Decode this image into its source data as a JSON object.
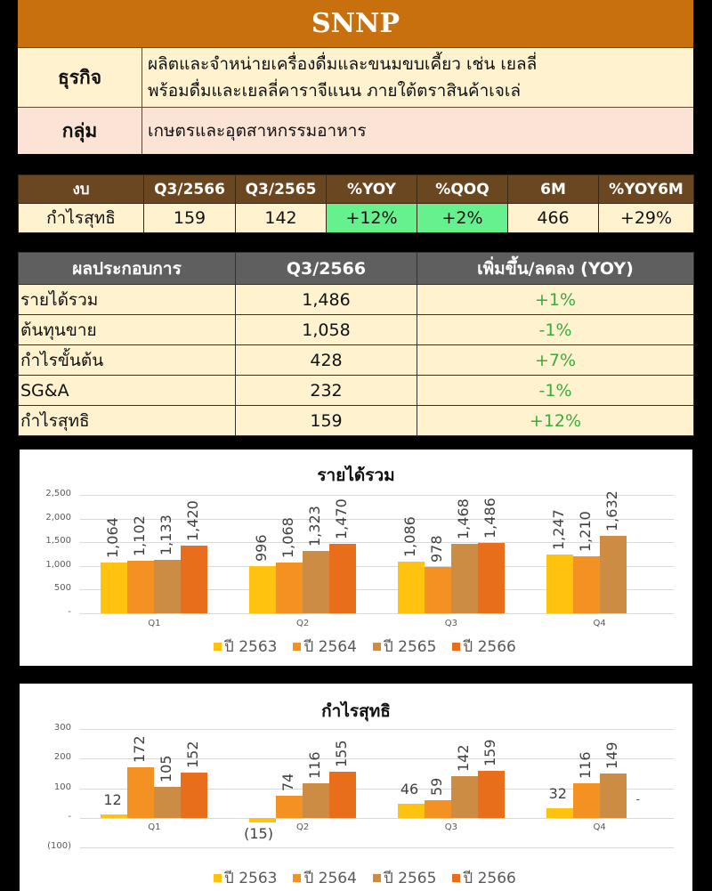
{
  "header": {
    "ticker": "SNNP",
    "business_label": "ธุรกิจ",
    "business_lines": [
      "ผลิตและจำหน่ายเครื่องดื่มและขนมขบเคี้ยว เช่น เยลลี่",
      "พร้อมดื่มและเยลลี่คาราจีแนน ภายใต้ตราสินค้าเจเล่"
    ],
    "group_label": "กลุ่ม",
    "group_value": "เกษตรและอุตสาหกรรมอาหาร"
  },
  "summary_table": {
    "headers": [
      "งบ",
      "Q3/2566",
      "Q3/2565",
      "%YOY",
      "%QOQ",
      "6M",
      "%YOY6M"
    ],
    "row": [
      "กำไรสุทธิ",
      "159",
      "142",
      "+12%",
      "+2%",
      "466",
      "+29%"
    ]
  },
  "operating_table": {
    "headers": [
      "ผลประกอบการ",
      "Q3/2566",
      "เพิ่มขึ้น/ลดลง (YOY)"
    ],
    "rows": [
      [
        "รายได้รวม",
        "1,486",
        "+1%"
      ],
      [
        "ต้นทุนขาย",
        "1,058",
        "-1%"
      ],
      [
        "กำไรขั้นต้น",
        "428",
        "+7%"
      ],
      [
        "SG&A",
        "232",
        "-1%"
      ],
      [
        "กำไรสุทธิ",
        "159",
        "+12%"
      ]
    ]
  },
  "colors": {
    "header_orange": "#C8700E",
    "summary_header_brown": "#6A4720",
    "operating_header_gray": "#5F5F5F",
    "positive_green_fill": "#66F08E",
    "change_text_green": "#3DAA3D",
    "series": [
      "#FFC20E",
      "#F39222",
      "#CC8C44",
      "#E86E1C"
    ]
  },
  "chart_data": [
    {
      "type": "bar",
      "title": "รายได้รวม",
      "categories": [
        "Q1",
        "Q2",
        "Q3",
        "Q4"
      ],
      "series": [
        {
          "name": "ปี 2563",
          "values": [
            1064,
            996,
            1086,
            1247
          ],
          "labels": [
            "1,064",
            "996",
            "1,086",
            "1,247"
          ]
        },
        {
          "name": "ปี 2564",
          "values": [
            1102,
            1068,
            978,
            1210
          ],
          "labels": [
            "1,102",
            "1,068",
            "978",
            "1,210"
          ]
        },
        {
          "name": "ปี 2565",
          "values": [
            1133,
            1323,
            1468,
            1632
          ],
          "labels": [
            "1,133",
            "1,323",
            "1,468",
            "1,632"
          ]
        },
        {
          "name": "ปี 2566",
          "values": [
            1420,
            1470,
            1486,
            null
          ],
          "labels": [
            "1,420",
            "1,470",
            "1,486",
            ""
          ]
        }
      ],
      "yticks": [
        "2,500",
        "2,000",
        "1,500",
        "1,000",
        "500",
        "-"
      ],
      "ylim": [
        0,
        2500
      ],
      "xlabel": "",
      "ylabel": "",
      "grid": true,
      "legend_position": "bottom"
    },
    {
      "type": "bar",
      "title": "กำไรสุทธิ",
      "categories": [
        "Q1",
        "Q2",
        "Q3",
        "Q4"
      ],
      "series": [
        {
          "name": "ปี 2563",
          "values": [
            12,
            -15,
            46,
            32
          ],
          "labels": [
            "12",
            "(15)",
            "46",
            "32"
          ]
        },
        {
          "name": "ปี 2564",
          "values": [
            172,
            74,
            59,
            116
          ],
          "labels": [
            "172",
            "74",
            "59",
            "116"
          ]
        },
        {
          "name": "ปี 2565",
          "values": [
            105,
            116,
            142,
            149
          ],
          "labels": [
            "105",
            "116",
            "142",
            "149"
          ]
        },
        {
          "name": "ปี 2566",
          "values": [
            152,
            155,
            159,
            0
          ],
          "labels": [
            "152",
            "155",
            "159",
            "-"
          ]
        }
      ],
      "yticks": [
        "300",
        "200",
        "100",
        "-",
        "(100)"
      ],
      "ylim": [
        -100,
        300
      ],
      "xlabel": "",
      "ylabel": "",
      "grid": true,
      "legend_position": "bottom"
    }
  ]
}
